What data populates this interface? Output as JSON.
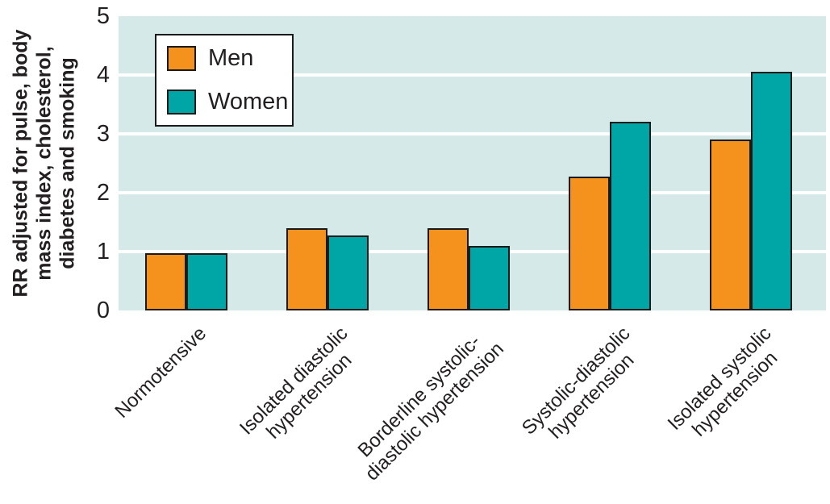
{
  "colors": {
    "men": "#F5921E",
    "women": "#00A5A5",
    "plot_bg": "#D5EAE8",
    "gridline": "#FFFFFF",
    "bar_border": "#1A1A1A",
    "text": "#231F20"
  },
  "chart_data": {
    "type": "bar",
    "title": "",
    "ylabel_lines": [
      "RR adjusted for pulse, body",
      "mass index, cholesterol,",
      "diabetes and smoking"
    ],
    "xlabel": "",
    "ylim": [
      0,
      5
    ],
    "yticks": [
      0,
      1,
      2,
      3,
      4,
      5
    ],
    "grid_values": [
      1,
      2,
      3,
      4
    ],
    "grid": true,
    "legend_position": "top-left",
    "categories": [
      [
        "Normotensive"
      ],
      [
        "Isolated diastolic",
        "hypertension"
      ],
      [
        "Borderline systolic-",
        "diastolic hypertension"
      ],
      [
        "Systolic-diastolic",
        "hypertension"
      ],
      [
        "Isolated systolic",
        "hypertension"
      ]
    ],
    "series": [
      {
        "name": "Men",
        "color_key": "men",
        "values": [
          0.97,
          1.4,
          1.4,
          2.28,
          2.9
        ]
      },
      {
        "name": "Women",
        "color_key": "women",
        "values": [
          0.97,
          1.28,
          1.1,
          3.2,
          4.05
        ]
      }
    ]
  }
}
